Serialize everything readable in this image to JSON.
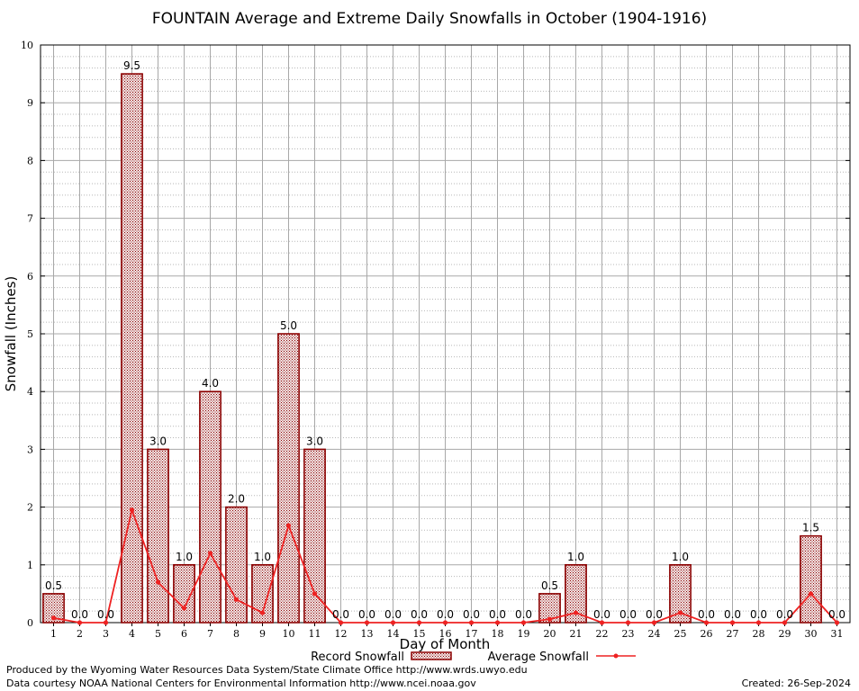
{
  "chart_data": {
    "type": "bar",
    "title": "FOUNTAIN Average and Extreme Daily Snowfalls in October (1904-1916)",
    "xlabel": "Day of Month",
    "ylabel": "Snowfall (Inches)",
    "ylim": [
      0,
      10
    ],
    "yticks": [
      "0",
      "1",
      "2",
      "3",
      "4",
      "5",
      "6",
      "7",
      "8",
      "9",
      "10"
    ],
    "categories": [
      "1",
      "2",
      "3",
      "4",
      "5",
      "6",
      "7",
      "8",
      "9",
      "10",
      "11",
      "12",
      "13",
      "14",
      "15",
      "16",
      "17",
      "18",
      "19",
      "20",
      "21",
      "22",
      "23",
      "24",
      "25",
      "26",
      "27",
      "28",
      "29",
      "30",
      "31"
    ],
    "grid": true,
    "legend_position": "bottom",
    "series": [
      {
        "name": "Record Snowfall",
        "type": "bar",
        "color": "#8b0000",
        "values": [
          0.5,
          0.0,
          0.0,
          9.5,
          3.0,
          1.0,
          4.0,
          2.0,
          1.0,
          5.0,
          3.0,
          0.0,
          0.0,
          0.0,
          0.0,
          0.0,
          0.0,
          0.0,
          0.0,
          0.5,
          1.0,
          0.0,
          0.0,
          0.0,
          1.0,
          0.0,
          0.0,
          0.0,
          0.0,
          1.5,
          0.0
        ],
        "labels": [
          "0.5",
          "0.0",
          "0.0",
          "9.5",
          "3.0",
          "1.0",
          "4.0",
          "2.0",
          "1.0",
          "5.0",
          "3.0",
          "0.0",
          "0.0",
          "0.0",
          "0.0",
          "0.0",
          "0.0",
          "0.0",
          "0.0",
          "0.5",
          "1.0",
          "0.0",
          "0.0",
          "0.0",
          "1.0",
          "0.0",
          "0.0",
          "0.0",
          "0.0",
          "1.5",
          "0.0"
        ]
      },
      {
        "name": "Average Snowfall",
        "type": "line",
        "color": "#ee2222",
        "values": [
          0.08,
          0.0,
          0.0,
          1.95,
          0.7,
          0.25,
          1.2,
          0.4,
          0.17,
          1.68,
          0.5,
          0.0,
          0.0,
          0.0,
          0.0,
          0.0,
          0.0,
          0.0,
          0.0,
          0.06,
          0.17,
          0.0,
          0.0,
          0.0,
          0.17,
          0.0,
          0.0,
          0.0,
          0.0,
          0.5,
          0.0
        ]
      }
    ]
  },
  "footer": {
    "left_line1": "Produced by the Wyoming Water Resources Data System/State Climate Office http://www.wrds.uwyo.edu",
    "left_line2": "Data courtesy NOAA National Centers for Environmental Information http://www.ncei.noaa.gov",
    "created": "Created:  26-Sep-2024"
  }
}
